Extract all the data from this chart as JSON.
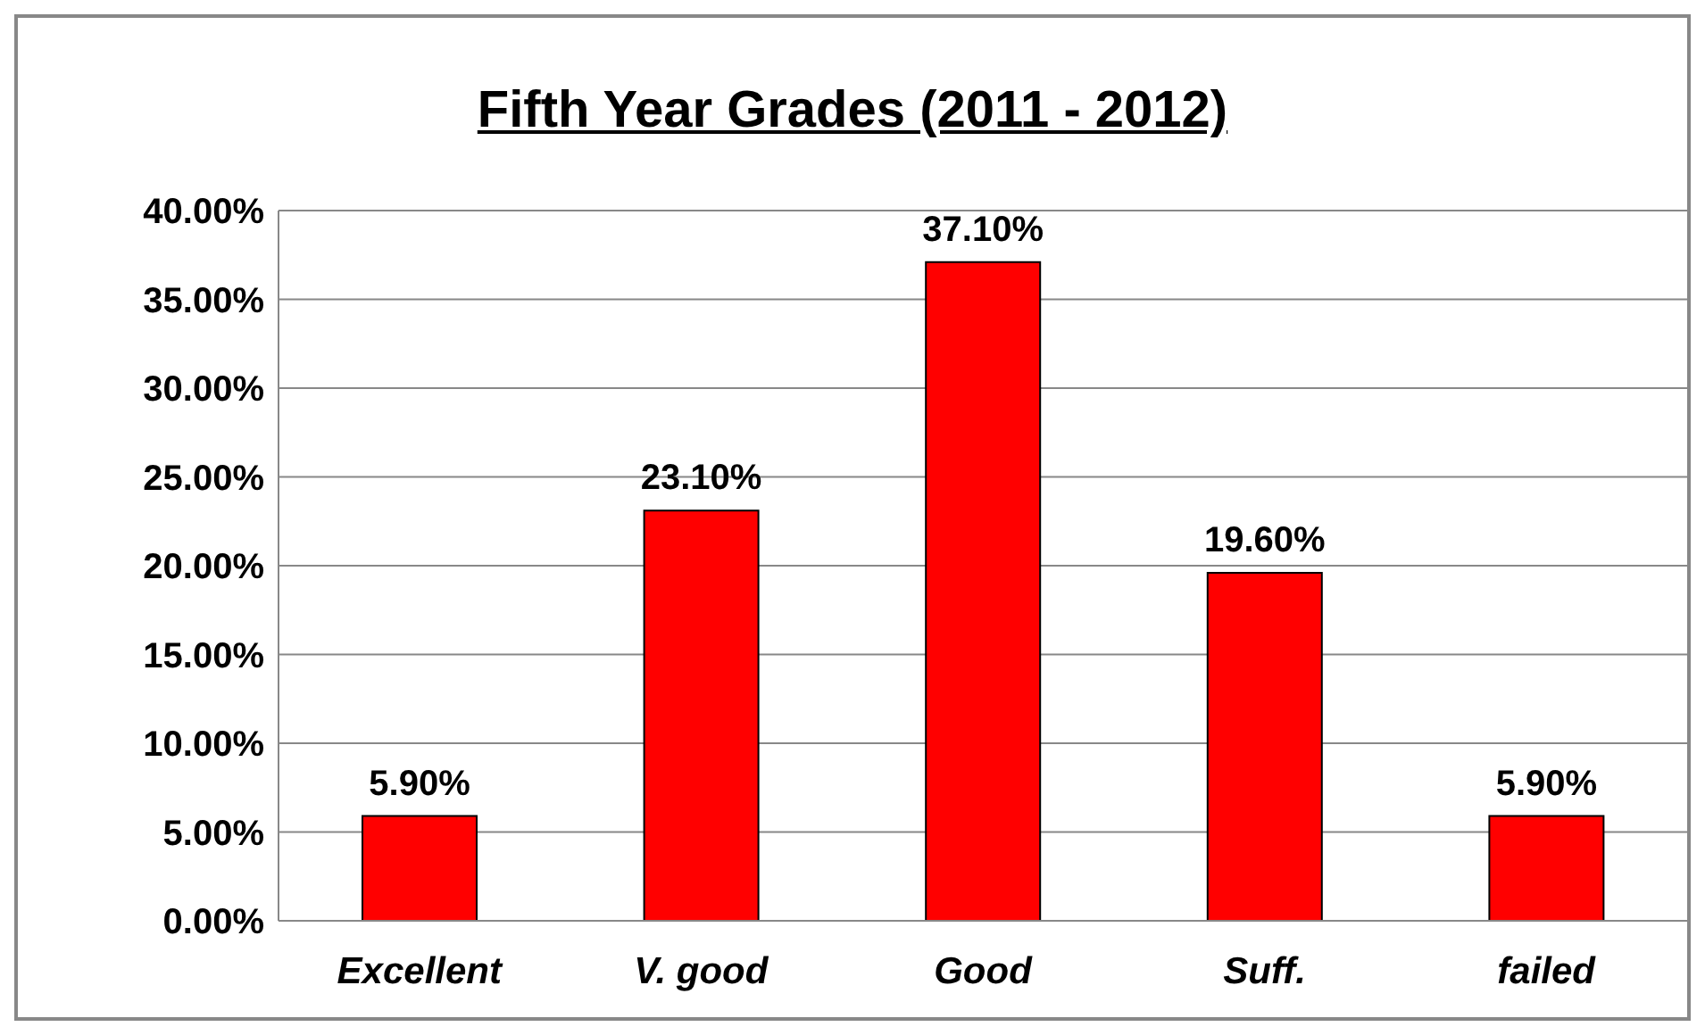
{
  "chart_data": {
    "type": "bar",
    "title": "Fifth Year Grades (2011 - 2012)",
    "categories": [
      "Excellent",
      "V. good",
      "Good",
      "Suff.",
      "failed"
    ],
    "values": [
      5.9,
      23.1,
      37.1,
      19.6,
      5.9
    ],
    "value_labels": [
      "5.90%",
      "23.10%",
      "37.10%",
      "19.60%",
      "5.90%"
    ],
    "color": "#ff0000",
    "ylim": [
      0,
      40
    ],
    "yticks": [
      {
        "value": 0,
        "label": "0.00%"
      },
      {
        "value": 5,
        "label": "5.00%"
      },
      {
        "value": 10,
        "label": "10.00%"
      },
      {
        "value": 15,
        "label": "15.00%"
      },
      {
        "value": 20,
        "label": "20.00%"
      },
      {
        "value": 25,
        "label": "25.00%"
      },
      {
        "value": 30,
        "label": "30.00%"
      },
      {
        "value": 35,
        "label": "35.00%"
      },
      {
        "value": 40,
        "label": "40.00%"
      }
    ],
    "grid": "y",
    "legend": false
  }
}
